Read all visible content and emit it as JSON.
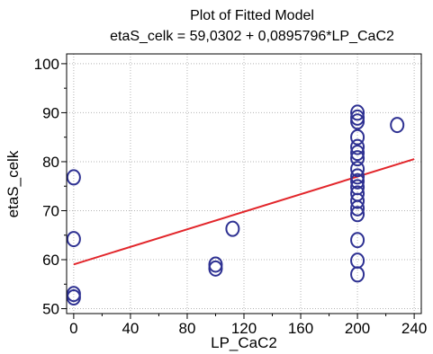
{
  "chart_data": {
    "type": "scatter",
    "title": "Plot of Fitted Model",
    "subtitle": "etaS_celk = 59,0302 + 0,0895796*LP_CaC2",
    "xlabel": "LP_CaC2",
    "ylabel": "etaS_celk",
    "xlim": [
      -5,
      245
    ],
    "ylim": [
      49,
      102
    ],
    "x_ticks": [
      0,
      40,
      80,
      120,
      160,
      200,
      240
    ],
    "y_ticks": [
      50,
      60,
      70,
      80,
      90,
      100
    ],
    "grid": true,
    "colors": {
      "points": "#2e3192",
      "fit": "#e2262b"
    },
    "fit": {
      "intercept": 59.0302,
      "slope": 0.0895796
    },
    "points": [
      {
        "x": 0,
        "y": 76.8
      },
      {
        "x": 0,
        "y": 64.2
      },
      {
        "x": 0,
        "y": 53.0
      },
      {
        "x": 0,
        "y": 52.3
      },
      {
        "x": 100,
        "y": 59.0
      },
      {
        "x": 100,
        "y": 58.2
      },
      {
        "x": 112,
        "y": 66.3
      },
      {
        "x": 228,
        "y": 87.5
      },
      {
        "x": 200,
        "y": 90.0
      },
      {
        "x": 200,
        "y": 89.0
      },
      {
        "x": 200,
        "y": 88.2
      },
      {
        "x": 200,
        "y": 85.0
      },
      {
        "x": 200,
        "y": 83.0
      },
      {
        "x": 200,
        "y": 81.8
      },
      {
        "x": 200,
        "y": 80.7
      },
      {
        "x": 200,
        "y": 78.5
      },
      {
        "x": 200,
        "y": 77.0
      },
      {
        "x": 200,
        "y": 76.0
      },
      {
        "x": 200,
        "y": 74.8
      },
      {
        "x": 200,
        "y": 73.5
      },
      {
        "x": 200,
        "y": 72.0
      },
      {
        "x": 200,
        "y": 70.5
      },
      {
        "x": 200,
        "y": 69.3
      },
      {
        "x": 200,
        "y": 64.0
      },
      {
        "x": 200,
        "y": 59.8
      },
      {
        "x": 200,
        "y": 57.0
      }
    ]
  }
}
